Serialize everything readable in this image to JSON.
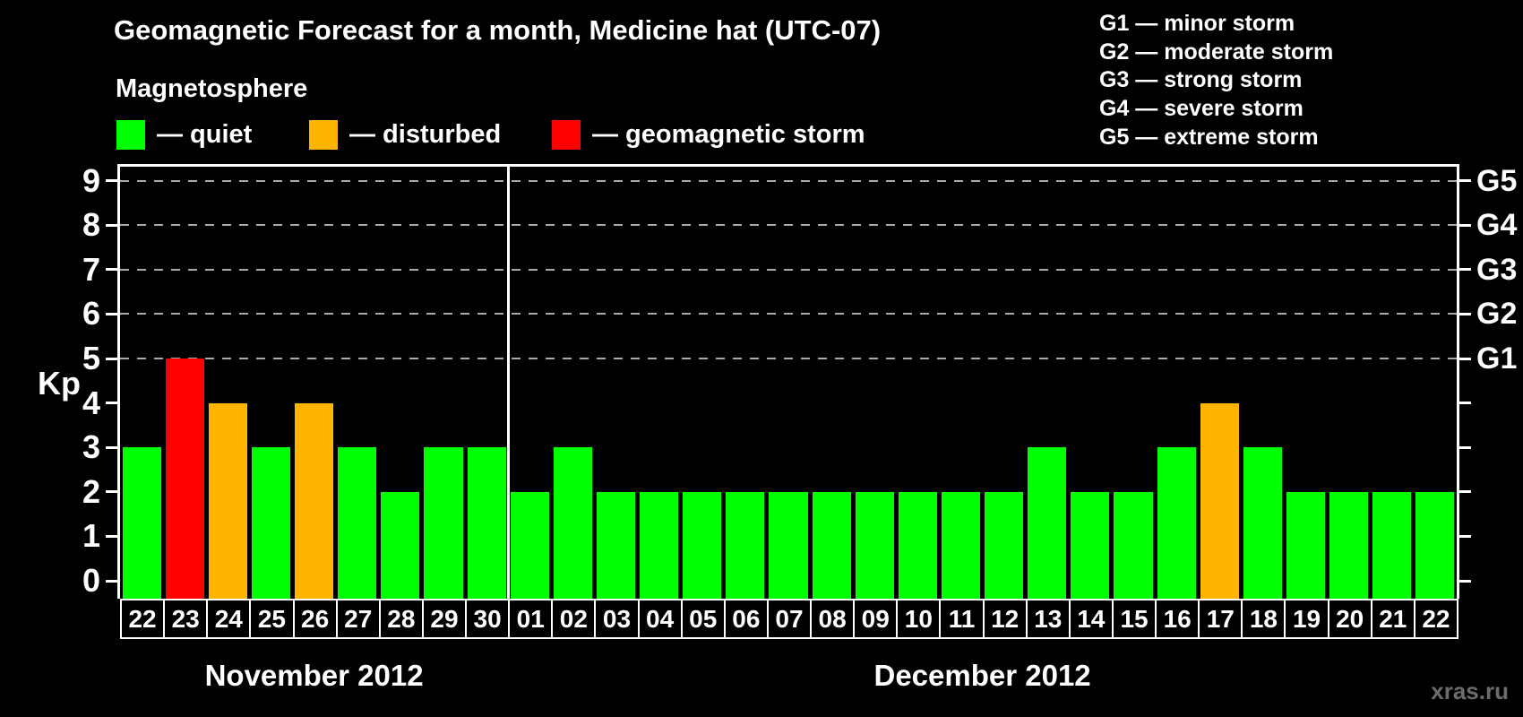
{
  "title": "Geomagnetic Forecast for a month, Medicine hat (UTC-07)",
  "watermark": "xras.ru",
  "legend": {
    "heading": "Magnetosphere",
    "items": [
      {
        "label": "— quiet",
        "color": "#00ff00",
        "meaning": "quiet"
      },
      {
        "label": "— disturbed",
        "color": "#ffb400",
        "meaning": "disturbed"
      },
      {
        "label": "— geomagnetic storm",
        "color": "#ff0000",
        "meaning": "storm"
      }
    ]
  },
  "g_scale_legend": [
    "G1 — minor storm",
    "G2 — moderate storm",
    "G3 — strong storm",
    "G4 — severe storm",
    "G5 — extreme storm"
  ],
  "chart_data": {
    "type": "bar",
    "title": "Geomagnetic Forecast for a month, Medicine hat (UTC-07)",
    "xlabel": "",
    "ylabel": "Kp",
    "ylim": [
      0,
      9
    ],
    "y_ticks": [
      0,
      1,
      2,
      3,
      4,
      5,
      6,
      7,
      8,
      9
    ],
    "grid_levels": [
      5,
      6,
      7,
      8,
      9
    ],
    "grid_on": true,
    "right_axis_labels": [
      {
        "kp": 5,
        "label": "G1"
      },
      {
        "kp": 6,
        "label": "G2"
      },
      {
        "kp": 7,
        "label": "G3"
      },
      {
        "kp": 8,
        "label": "G4"
      },
      {
        "kp": 9,
        "label": "G5"
      }
    ],
    "colors": {
      "quiet": "#00ff00",
      "disturbed": "#ffb400",
      "storm": "#ff0000"
    },
    "color_rules": {
      "quiet_max_kp": 3,
      "disturbed_kp": 4,
      "storm_min_kp": 5
    },
    "months": [
      {
        "label": "November 2012",
        "days": [
          "22",
          "23",
          "24",
          "25",
          "26",
          "27",
          "28",
          "29",
          "30"
        ],
        "values": [
          3,
          5,
          4,
          3,
          4,
          3,
          2,
          3,
          3
        ]
      },
      {
        "label": "December 2012",
        "days": [
          "01",
          "02",
          "03",
          "04",
          "05",
          "06",
          "07",
          "08",
          "09",
          "10",
          "11",
          "12",
          "13",
          "14",
          "15",
          "16",
          "17",
          "18",
          "19",
          "20",
          "21",
          "22"
        ],
        "values": [
          2,
          3,
          2,
          2,
          2,
          2,
          2,
          2,
          2,
          2,
          2,
          2,
          3,
          2,
          2,
          3,
          4,
          3,
          2,
          2,
          2,
          2
        ]
      }
    ]
  }
}
